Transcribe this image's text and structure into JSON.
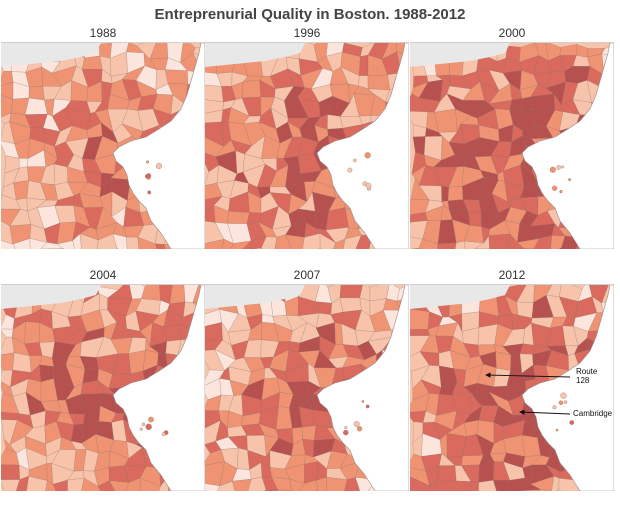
{
  "title": "Entreprenurial Quality in Boston. 1988-2012",
  "panels": [
    {
      "year": "1988",
      "seed": 11,
      "bias": 0.05
    },
    {
      "year": "1996",
      "seed": 23,
      "bias": 0.18
    },
    {
      "year": "2000",
      "seed": 37,
      "bias": 0.3
    },
    {
      "year": "2004",
      "seed": 41,
      "bias": 0.2
    },
    {
      "year": "2007",
      "seed": 53,
      "bias": 0.15
    },
    {
      "year": "2012",
      "seed": 67,
      "bias": 0.22
    }
  ],
  "annotations": {
    "route128": "Route 128",
    "cambridge": "Cambridge"
  },
  "colors": {
    "c0": "#fbe5dc",
    "c1": "#f7c3aa",
    "c2": "#f09372",
    "c3": "#d96a5d",
    "c4": "#b7514f",
    "border": "#7a6a6a",
    "background_gray": "#e8e8e8",
    "ocean": "#ffffff"
  }
}
